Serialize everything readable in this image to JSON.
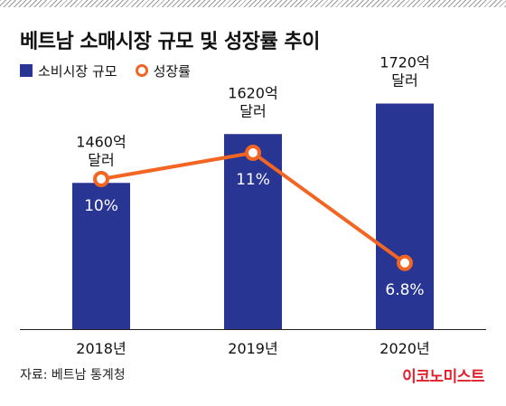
{
  "title": "베트남 소매시장 규모 및 성장률 추이",
  "legend": {
    "bar_label": "소비시장 규모",
    "line_label": "성장률"
  },
  "colors": {
    "bar": "#283593",
    "line": "#f26522"
  },
  "chart_data": {
    "type": "bar",
    "categories": [
      "2018년",
      "2019년",
      "2020년"
    ],
    "series": [
      {
        "name": "소비시장 규모",
        "type": "bar",
        "values": [
          1460,
          1620,
          1720
        ],
        "data_labels": [
          [
            "1460억",
            "달러"
          ],
          [
            "1620억",
            "달러"
          ],
          [
            "1720억",
            "달러"
          ]
        ]
      },
      {
        "name": "성장률",
        "type": "line",
        "values": [
          10,
          11,
          6.8
        ],
        "data_labels": [
          "10%",
          "11%",
          "6.8%"
        ]
      }
    ]
  },
  "footer": {
    "source": "자료: 베트남 통계청",
    "brand": "이코노미스트"
  }
}
